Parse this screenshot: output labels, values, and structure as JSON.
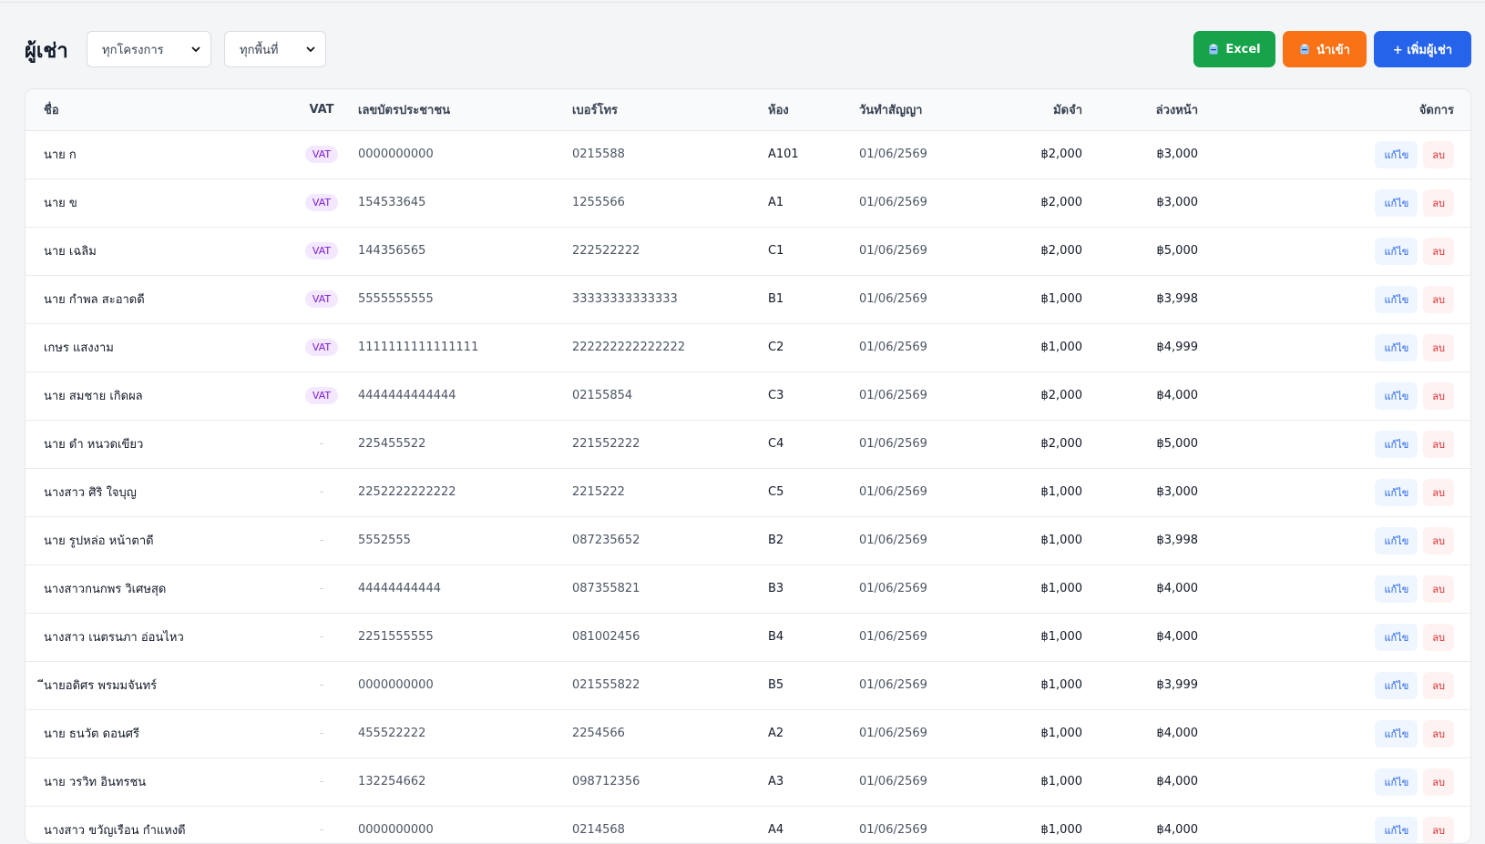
{
  "header": {
    "title": "ผู้เช่า",
    "project_filter": "ทุกโครงการ",
    "area_filter": "ทุกพื้นที่",
    "excel_label": "Excel",
    "import_label": "นำเข้า",
    "add_label": "+ เพิ่มผู้เช่า"
  },
  "colors": {
    "excel": "#16a34a",
    "import": "#f97316",
    "add": "#2563eb",
    "vat_badge": "#f3e8ff"
  },
  "table": {
    "columns": [
      "ชื่อ",
      "VAT",
      "เลขบัตรประชาชน",
      "เบอร์โทร",
      "ห้อง",
      "วันทำสัญญา",
      "มัดจำ",
      "ล่วงหน้า",
      "จัดการ"
    ],
    "edit_label": "แก้ไข",
    "delete_label": "ลบ",
    "rows": [
      {
        "name": "นาย ก",
        "vat": "VAT",
        "id_card": "0000000000",
        "phone": "0215588",
        "room": "A101",
        "contract_date": "01/06/2569",
        "deposit": "฿2,000",
        "advance": "฿3,000"
      },
      {
        "name": "นาย ข",
        "vat": "VAT",
        "id_card": "154533645",
        "phone": "1255566",
        "room": "A1",
        "contract_date": "01/06/2569",
        "deposit": "฿2,000",
        "advance": "฿3,000"
      },
      {
        "name": "นาย เฉลิม",
        "vat": "VAT",
        "id_card": "144356565",
        "phone": "222522222",
        "room": "C1",
        "contract_date": "01/06/2569",
        "deposit": "฿2,000",
        "advance": "฿5,000"
      },
      {
        "name": "นาย กำพล สะอาดดี",
        "vat": "VAT",
        "id_card": "5555555555",
        "phone": "33333333333333",
        "room": "B1",
        "contract_date": "01/06/2569",
        "deposit": "฿1,000",
        "advance": "฿3,998"
      },
      {
        "name": "เกษร แสงงาม",
        "vat": "VAT",
        "id_card": "1111111111111111",
        "phone": "222222222222222",
        "room": "C2",
        "contract_date": "01/06/2569",
        "deposit": "฿1,000",
        "advance": "฿4,999"
      },
      {
        "name": "นาย สมชาย เกิดผล",
        "vat": "VAT",
        "id_card": "4444444444444",
        "phone": "02155854",
        "room": "C3",
        "contract_date": "01/06/2569",
        "deposit": "฿2,000",
        "advance": "฿4,000"
      },
      {
        "name": "นาย ดำ หนวดเขียว",
        "vat": "-",
        "id_card": "225455522",
        "phone": "221552222",
        "room": "C4",
        "contract_date": "01/06/2569",
        "deposit": "฿2,000",
        "advance": "฿5,000"
      },
      {
        "name": "นางสาว ศิริ ใจบุญ",
        "vat": "-",
        "id_card": "2252222222222",
        "phone": "2215222",
        "room": "C5",
        "contract_date": "01/06/2569",
        "deposit": "฿1,000",
        "advance": "฿3,000"
      },
      {
        "name": "นาย รูปหล่อ หน้าตาดี",
        "vat": "-",
        "id_card": "5552555",
        "phone": "087235652",
        "room": "B2",
        "contract_date": "01/06/2569",
        "deposit": "฿1,000",
        "advance": "฿3,998"
      },
      {
        "name": "นางสาวกนกพร วิเศษสุด",
        "vat": "-",
        "id_card": "44444444444",
        "phone": "087355821",
        "room": "B3",
        "contract_date": "01/06/2569",
        "deposit": "฿1,000",
        "advance": "฿4,000"
      },
      {
        "name": "นางสาว เนตรนภา อ่อนไหว",
        "vat": "-",
        "id_card": "2251555555",
        "phone": "081002456",
        "room": "B4",
        "contract_date": "01/06/2569",
        "deposit": "฿1,000",
        "advance": "฿4,000"
      },
      {
        "name": "ีนายอดิศร พรมมจันทร์",
        "vat": "-",
        "id_card": "0000000000",
        "phone": "021555822",
        "room": "B5",
        "contract_date": "01/06/2569",
        "deposit": "฿1,000",
        "advance": "฿3,999"
      },
      {
        "name": "นาย ธนวัต ดอนศรี",
        "vat": "-",
        "id_card": "455522222",
        "phone": "2254566",
        "room": "A2",
        "contract_date": "01/06/2569",
        "deposit": "฿1,000",
        "advance": "฿4,000"
      },
      {
        "name": "นาย วรวิท อินทรชน",
        "vat": "-",
        "id_card": "132254662",
        "phone": "098712356",
        "room": "A3",
        "contract_date": "01/06/2569",
        "deposit": "฿1,000",
        "advance": "฿4,000"
      },
      {
        "name": "นางสาว ขวัญเรือน กำแหงดี",
        "vat": "-",
        "id_card": "0000000000",
        "phone": "0214568",
        "room": "A4",
        "contract_date": "01/06/2569",
        "deposit": "฿1,000",
        "advance": "฿4,000"
      }
    ]
  }
}
